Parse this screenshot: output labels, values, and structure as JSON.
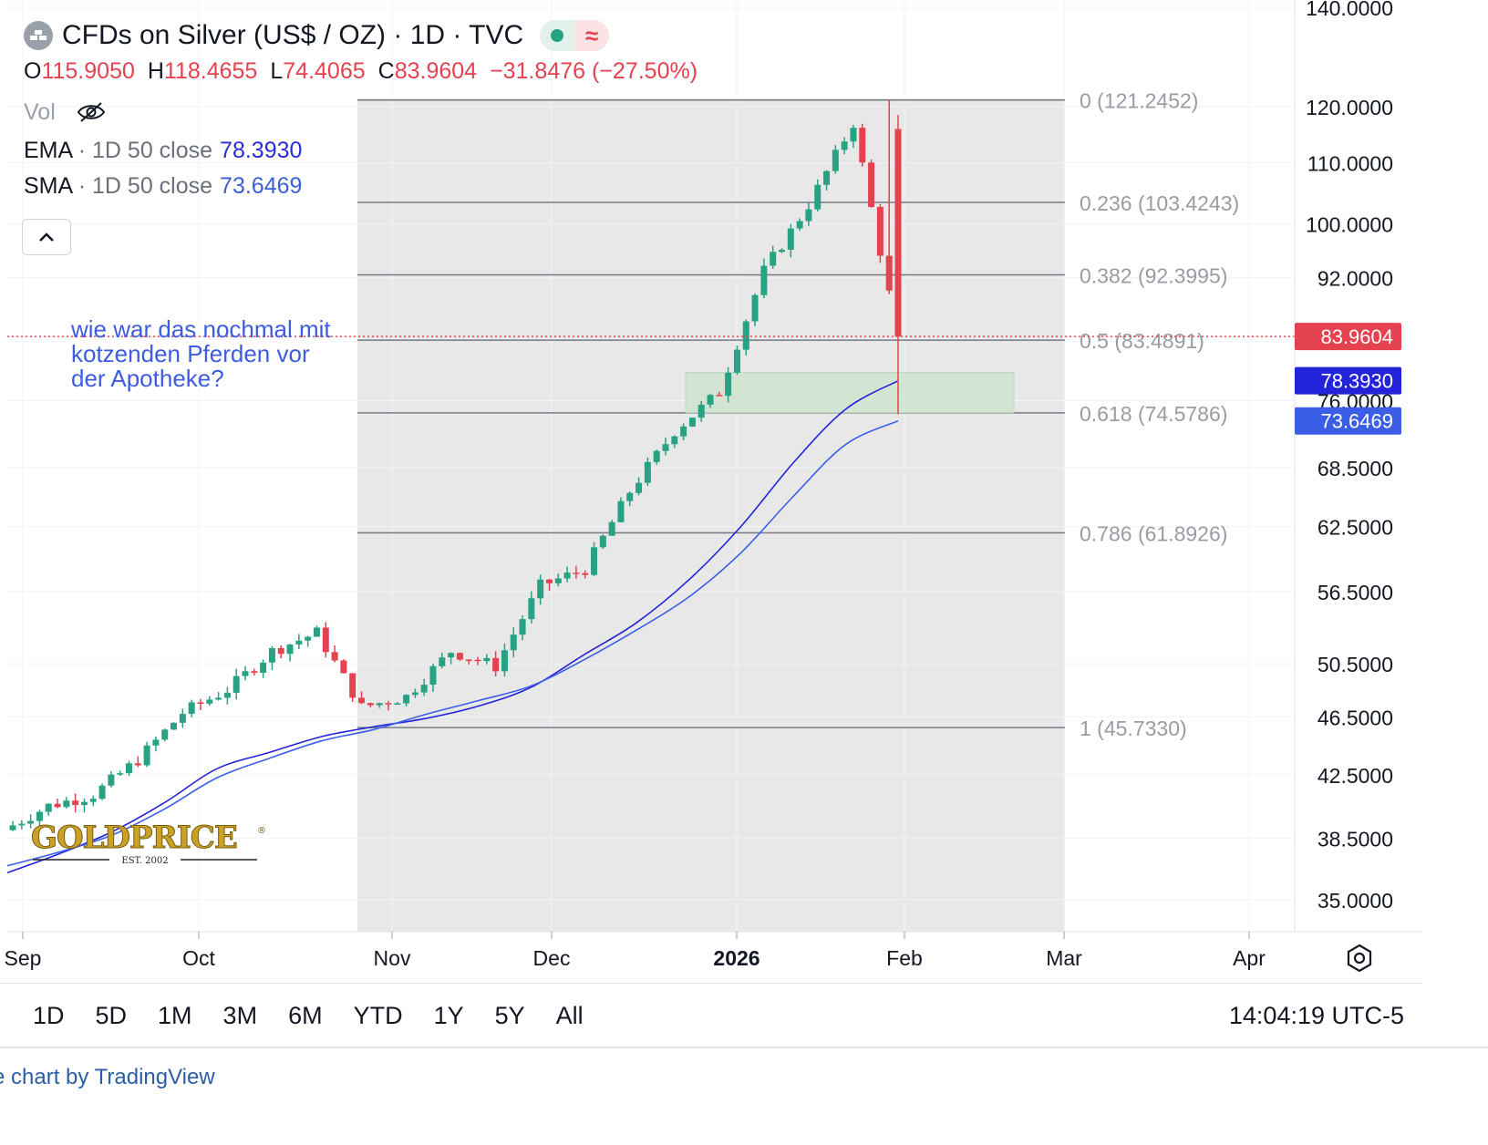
{
  "header": {
    "title": "CFDs on Silver (US$ / OZ) · 1D · TVC",
    "icon": "silver-bars-icon",
    "status_dot_color": "#27a383",
    "approx_symbol": "≈"
  },
  "ohlc": {
    "o_label": "O",
    "o": "115.9050",
    "h_label": "H",
    "h": "118.4655",
    "l_label": "L",
    "l": "74.4065",
    "c_label": "C",
    "c": "83.9604",
    "change": "−31.8476 (−27.50%)"
  },
  "volume": {
    "label": "Vol",
    "icon": "eye-off-icon"
  },
  "indicators": {
    "ema": {
      "name": "EMA",
      "args": " · 1D 50 close",
      "value": "78.3930",
      "color": "#2c2cd8"
    },
    "sma": {
      "name": "SMA",
      "args": " · 1D 50 close",
      "value": "73.6469",
      "color": "#3a5fd8"
    }
  },
  "annotation": {
    "lines": [
      "wie war das nochmal mit",
      "kotzenden Pferden vor",
      "der Apotheke?"
    ],
    "color": "#3d5ce0"
  },
  "watermark": {
    "brand": "GOLDPRICE",
    "reg": "®",
    "est": "EST. 2002"
  },
  "toolbar": {
    "ranges": [
      "1D",
      "5D",
      "1M",
      "3M",
      "6M",
      "YTD",
      "1Y",
      "5Y",
      "All"
    ],
    "clock": "14:04:19 UTC-5"
  },
  "footer": {
    "credit": "e chart by TradingView"
  },
  "chart_data": {
    "type": "candlestick",
    "scale": "log",
    "y_axis_ticks": [
      "140.0000",
      "120.0000",
      "110.0000",
      "100.0000",
      "92.0000",
      "76.0000",
      "68.5000",
      "62.5000",
      "56.5000",
      "50.5000",
      "46.5000",
      "42.5000",
      "38.5000",
      "35.0000"
    ],
    "x_axis_labels": [
      "Sep",
      "Oct",
      "Nov",
      "Dec",
      "2026",
      "Feb",
      "Mar",
      "Apr"
    ],
    "price_labels": [
      {
        "text": "83.9604",
        "value": 83.9604,
        "bg": "#e5424f"
      },
      {
        "text": "78.3930",
        "value": 78.393,
        "bg": "#2323d9"
      },
      {
        "text": "73.6469",
        "value": 73.6469,
        "bg": "#3a5fe6"
      }
    ],
    "fibonacci": {
      "levels": [
        {
          "ratio": 0,
          "text": "0 (121.2452)",
          "price": 121.2452
        },
        {
          "ratio": 0.236,
          "text": "0.236 (103.4243)",
          "price": 103.4243
        },
        {
          "ratio": 0.382,
          "text": "0.382 (92.3995)",
          "price": 92.3995
        },
        {
          "ratio": 0.5,
          "text": "0.5 (83.4891)",
          "price": 83.4891
        },
        {
          "ratio": 0.618,
          "text": "0.618 (74.5786)",
          "price": 74.5786
        },
        {
          "ratio": 0.786,
          "text": "0.786 (61.8926)",
          "price": 61.8926
        },
        {
          "ratio": 1,
          "text": "1 (45.7330)",
          "price": 45.733
        }
      ]
    },
    "zone": {
      "top": 79.4,
      "bottom": 74.6,
      "color": "#cfe3cf"
    },
    "current_price": 83.9604,
    "series": [
      {
        "name": "EMA 50",
        "color": "#2323d9",
        "values": [
          36.5,
          37.6,
          38.9,
          40.7,
          42.9,
          44.0,
          45.1,
          45.8,
          46.4,
          47.3,
          48.7,
          51.2,
          53.8,
          57.5,
          62.5,
          69.0,
          75.0,
          78.39
        ]
      },
      {
        "name": "SMA 50",
        "color": "#3a5fe6",
        "values": [
          36.9,
          37.7,
          38.7,
          40.3,
          42.3,
          43.6,
          44.8,
          45.6,
          46.7,
          47.7,
          48.8,
          50.8,
          53.2,
          56.0,
          60.0,
          65.5,
          71.0,
          73.65
        ]
      },
      {
        "name": "Price",
        "color": "#27a383",
        "values": [
          39.0,
          40.5,
          41.2,
          43.5,
          46.8,
          48.5,
          51.5,
          53.0,
          47.2,
          48.0,
          51.5,
          50.3,
          57.0,
          58.5,
          66.0,
          72.5,
          77.0,
          93.0,
          103.0,
          117.0,
          83.96
        ]
      }
    ]
  }
}
